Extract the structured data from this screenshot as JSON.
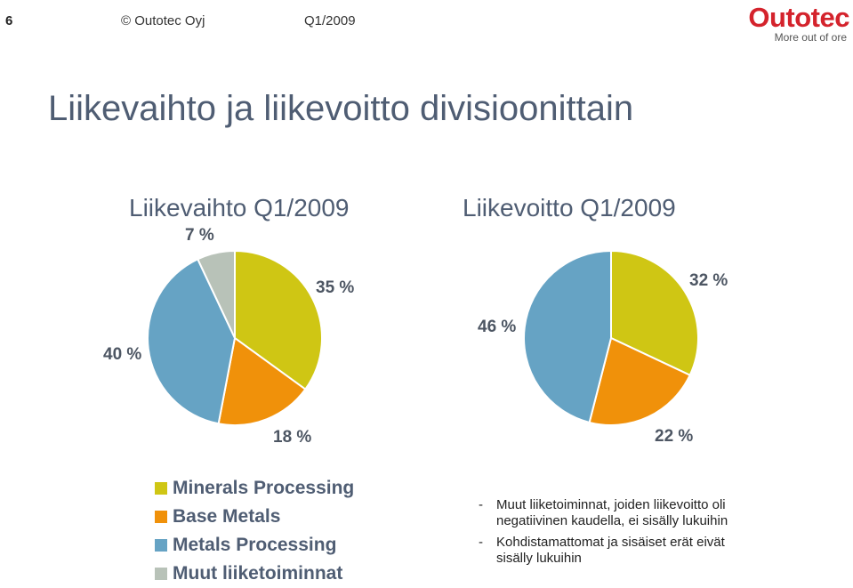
{
  "header": {
    "slide_number": "6",
    "copyright": "© Outotec Oyj",
    "period": "Q1/2009"
  },
  "logo": {
    "name": "Outotec",
    "tagline": "More out of ore",
    "color": "#d4232c"
  },
  "title": "Liikevaihto ja liikevoitto divisioonittain",
  "colors": {
    "Minerals Processing": "#cfc614",
    "Base Metals": "#f0910a",
    "Metals Processing": "#66a3c4",
    "Muut liiketoiminnat": "#b8c2b8"
  },
  "chart_data": [
    {
      "type": "pie",
      "title": "Liikevaihto Q1/2009",
      "series": [
        {
          "name": "Minerals Processing",
          "value": 35,
          "label": "35 %"
        },
        {
          "name": "Base Metals",
          "value": 18,
          "label": "18 %"
        },
        {
          "name": "Metals Processing",
          "value": 40,
          "label": "40 %"
        },
        {
          "name": "Muut liiketoiminnat",
          "value": 7,
          "label": "7 %"
        }
      ]
    },
    {
      "type": "pie",
      "title": "Liikevoitto Q1/2009",
      "series": [
        {
          "name": "Minerals Processing",
          "value": 32,
          "label": "32 %"
        },
        {
          "name": "Base Metals",
          "value": 22,
          "label": "22 %"
        },
        {
          "name": "Metals Processing",
          "value": 46,
          "label": "46 %"
        }
      ]
    }
  ],
  "legend": [
    "Minerals Processing",
    "Base Metals",
    "Metals Processing",
    "Muut liiketoiminnat"
  ],
  "notes": [
    {
      "dash": "-",
      "text": "Muut liiketoiminnat, joiden liikevoitto oli negatiivinen kaudella, ei sisälly lukuihin"
    },
    {
      "dash": "-",
      "text": "Kohdistamattomat ja sisäiset erät eivät sisälly lukuihin"
    }
  ]
}
